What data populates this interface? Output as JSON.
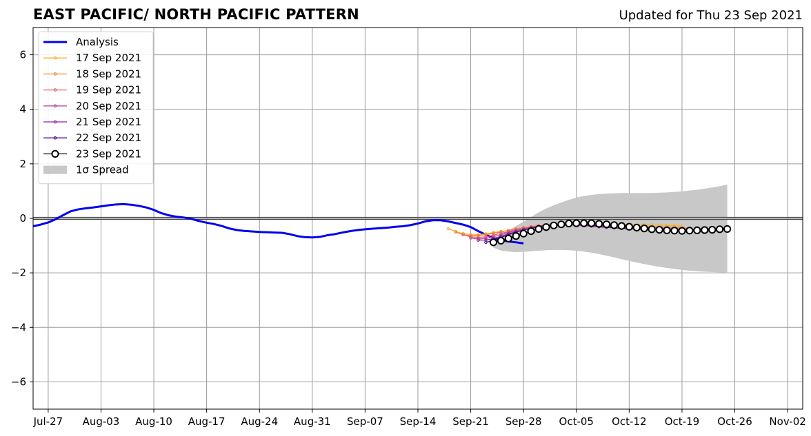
{
  "header": {
    "title": "EAST PACIFIC/ NORTH PACIFIC PATTERN",
    "updated": "Updated for Thu 23 Sep 2021"
  },
  "chart_data": {
    "type": "line",
    "title": "EAST PACIFIC/ NORTH PACIFIC PATTERN",
    "subtitle": "Updated for Thu 23 Sep 2021",
    "xlabel": "",
    "ylabel": "",
    "x_type": "date",
    "xlim": [
      "2021-07-25",
      "2021-11-04"
    ],
    "ylim": [
      -7,
      7
    ],
    "x_ticks": [
      {
        "date": "2021-07-27",
        "label": "Jul-27"
      },
      {
        "date": "2021-08-03",
        "label": "Aug-03"
      },
      {
        "date": "2021-08-10",
        "label": "Aug-10"
      },
      {
        "date": "2021-08-17",
        "label": "Aug-17"
      },
      {
        "date": "2021-08-24",
        "label": "Aug-24"
      },
      {
        "date": "2021-08-31",
        "label": "Aug-31"
      },
      {
        "date": "2021-09-07",
        "label": "Sep-07"
      },
      {
        "date": "2021-09-14",
        "label": "Sep-14"
      },
      {
        "date": "2021-09-21",
        "label": "Sep-21"
      },
      {
        "date": "2021-09-28",
        "label": "Sep-28"
      },
      {
        "date": "2021-10-05",
        "label": "Oct-05"
      },
      {
        "date": "2021-10-12",
        "label": "Oct-12"
      },
      {
        "date": "2021-10-19",
        "label": "Oct-19"
      },
      {
        "date": "2021-10-26",
        "label": "Oct-26"
      },
      {
        "date": "2021-11-02",
        "label": "Nov-02"
      }
    ],
    "y_ticks": [
      {
        "value": 6,
        "label": "6"
      },
      {
        "value": 4,
        "label": "4"
      },
      {
        "value": 2,
        "label": "2"
      },
      {
        "value": 0,
        "label": "0"
      },
      {
        "value": -2,
        "label": "−2"
      },
      {
        "value": -4,
        "label": "−4"
      },
      {
        "value": -6,
        "label": "−6"
      }
    ],
    "grid": true,
    "zero_line": true,
    "legend_position": "top-left",
    "series": [
      {
        "name": "Analysis",
        "color": "#0000ee",
        "marker": "none",
        "start": "2021-07-25",
        "values": [
          -0.29,
          -0.23,
          -0.15,
          -0.03,
          0.12,
          0.26,
          0.33,
          0.37,
          0.4,
          0.44,
          0.48,
          0.51,
          0.52,
          0.5,
          0.46,
          0.4,
          0.31,
          0.19,
          0.11,
          0.06,
          0.03,
          -0.02,
          -0.1,
          -0.16,
          -0.21,
          -0.28,
          -0.37,
          -0.43,
          -0.46,
          -0.48,
          -0.5,
          -0.51,
          -0.52,
          -0.53,
          -0.58,
          -0.65,
          -0.69,
          -0.7,
          -0.68,
          -0.62,
          -0.58,
          -0.52,
          -0.47,
          -0.43,
          -0.4,
          -0.38,
          -0.36,
          -0.34,
          -0.31,
          -0.29,
          -0.25,
          -0.19,
          -0.11,
          -0.07,
          -0.07,
          -0.11,
          -0.17,
          -0.23,
          -0.32,
          -0.47,
          -0.6,
          -0.72,
          -0.8,
          -0.85,
          -0.88,
          -0.92
        ]
      },
      {
        "name": "17 Sep 2021",
        "color": "#f5b130",
        "marker": "dot",
        "start": "2021-09-18",
        "values": [
          -0.38,
          -0.48,
          -0.56,
          -0.6,
          -0.6,
          -0.57,
          -0.52,
          -0.48,
          -0.45,
          -0.4,
          -0.36,
          -0.32,
          -0.29,
          -0.27,
          -0.25,
          -0.23,
          -0.21,
          -0.2,
          -0.19,
          -0.19,
          -0.19,
          -0.19,
          -0.2,
          -0.21,
          -0.22,
          -0.23,
          -0.24,
          -0.24,
          -0.25,
          -0.26,
          -0.27,
          -0.28
        ]
      },
      {
        "name": "18 Sep 2021",
        "color": "#f0843c",
        "marker": "dot",
        "start": "2021-09-19",
        "values": [
          -0.5,
          -0.6,
          -0.64,
          -0.63,
          -0.6,
          -0.55,
          -0.5,
          -0.44,
          -0.39,
          -0.34,
          -0.3,
          -0.27,
          -0.25,
          -0.23,
          -0.21,
          -0.2,
          -0.2,
          -0.2,
          -0.21,
          -0.22,
          -0.24,
          -0.26,
          -0.27,
          -0.28,
          -0.29,
          -0.3,
          -0.31,
          -0.32,
          -0.33,
          -0.34,
          -0.35,
          -0.36
        ]
      },
      {
        "name": "19 Sep 2021",
        "color": "#e0606a",
        "marker": "dot",
        "start": "2021-09-20",
        "values": [
          -0.6,
          -0.68,
          -0.7,
          -0.68,
          -0.62,
          -0.55,
          -0.49,
          -0.42,
          -0.37,
          -0.32,
          -0.28,
          -0.25,
          -0.23,
          -0.22,
          -0.21,
          -0.21,
          -0.22,
          -0.24,
          -0.26,
          -0.28,
          -0.3,
          -0.31,
          -0.32,
          -0.33,
          -0.34,
          -0.35,
          -0.36,
          -0.37,
          -0.38,
          -0.39,
          -0.4,
          -0.4
        ]
      },
      {
        "name": "20 Sep 2021",
        "color": "#b8489a",
        "marker": "dot",
        "start": "2021-09-21",
        "values": [
          -0.72,
          -0.76,
          -0.74,
          -0.68,
          -0.6,
          -0.52,
          -0.45,
          -0.39,
          -0.34,
          -0.3,
          -0.27,
          -0.25,
          -0.24,
          -0.24,
          -0.25,
          -0.27,
          -0.29,
          -0.31,
          -0.33,
          -0.35,
          -0.36,
          -0.37,
          -0.38,
          -0.39,
          -0.4,
          -0.41,
          -0.42,
          -0.42,
          -0.43,
          -0.43,
          -0.44,
          -0.44
        ]
      },
      {
        "name": "21 Sep 2021",
        "color": "#8a22a8",
        "marker": "dot",
        "start": "2021-09-22",
        "values": [
          -0.8,
          -0.8,
          -0.74,
          -0.66,
          -0.57,
          -0.49,
          -0.42,
          -0.36,
          -0.31,
          -0.27,
          -0.24,
          -0.22,
          -0.22,
          -0.23,
          -0.25,
          -0.28,
          -0.31,
          -0.33,
          -0.35,
          -0.37,
          -0.38,
          -0.39,
          -0.4,
          -0.41,
          -0.42,
          -0.43,
          -0.44,
          -0.44,
          -0.45,
          -0.45,
          -0.46,
          -0.46
        ]
      },
      {
        "name": "22 Sep 2021",
        "color": "#4a1290",
        "marker": "dot",
        "start": "2021-09-23",
        "values": [
          -0.88,
          -0.8,
          -0.7,
          -0.6,
          -0.51,
          -0.43,
          -0.36,
          -0.3,
          -0.26,
          -0.23,
          -0.21,
          -0.2,
          -0.21,
          -0.23,
          -0.26,
          -0.29,
          -0.32,
          -0.34,
          -0.36,
          -0.38,
          -0.39,
          -0.4,
          -0.41,
          -0.42,
          -0.43,
          -0.44,
          -0.44,
          -0.45,
          -0.45,
          -0.46,
          -0.46,
          -0.46
        ]
      },
      {
        "name": "23 Sep 2021",
        "color": "#000000",
        "marker": "open-circle",
        "start": "2021-09-24",
        "values": [
          -0.88,
          -0.82,
          -0.74,
          -0.65,
          -0.56,
          -0.47,
          -0.39,
          -0.32,
          -0.26,
          -0.22,
          -0.19,
          -0.18,
          -0.18,
          -0.18,
          -0.2,
          -0.22,
          -0.25,
          -0.28,
          -0.31,
          -0.34,
          -0.37,
          -0.4,
          -0.42,
          -0.44,
          -0.45,
          -0.46,
          -0.45,
          -0.44,
          -0.43,
          -0.42,
          -0.4,
          -0.39
        ]
      }
    ],
    "spread": {
      "name": "1σ Spread",
      "color": "#c8c8c8",
      "start": "2021-09-24",
      "upper": [
        -0.85,
        -0.65,
        -0.45,
        -0.28,
        -0.12,
        0.05,
        0.22,
        0.36,
        0.48,
        0.58,
        0.68,
        0.76,
        0.82,
        0.86,
        0.89,
        0.91,
        0.92,
        0.93,
        0.93,
        0.93,
        0.93,
        0.93,
        0.94,
        0.95,
        0.97,
        0.99,
        1.02,
        1.05,
        1.09,
        1.13,
        1.18,
        1.24
      ],
      "lower": [
        -1.08,
        -1.18,
        -1.22,
        -1.24,
        -1.23,
        -1.21,
        -1.19,
        -1.17,
        -1.16,
        -1.16,
        -1.17,
        -1.19,
        -1.22,
        -1.26,
        -1.31,
        -1.37,
        -1.43,
        -1.5,
        -1.56,
        -1.62,
        -1.68,
        -1.73,
        -1.78,
        -1.82,
        -1.86,
        -1.89,
        -1.92,
        -1.94,
        -1.96,
        -1.97,
        -1.98,
        -1.99
      ]
    }
  }
}
